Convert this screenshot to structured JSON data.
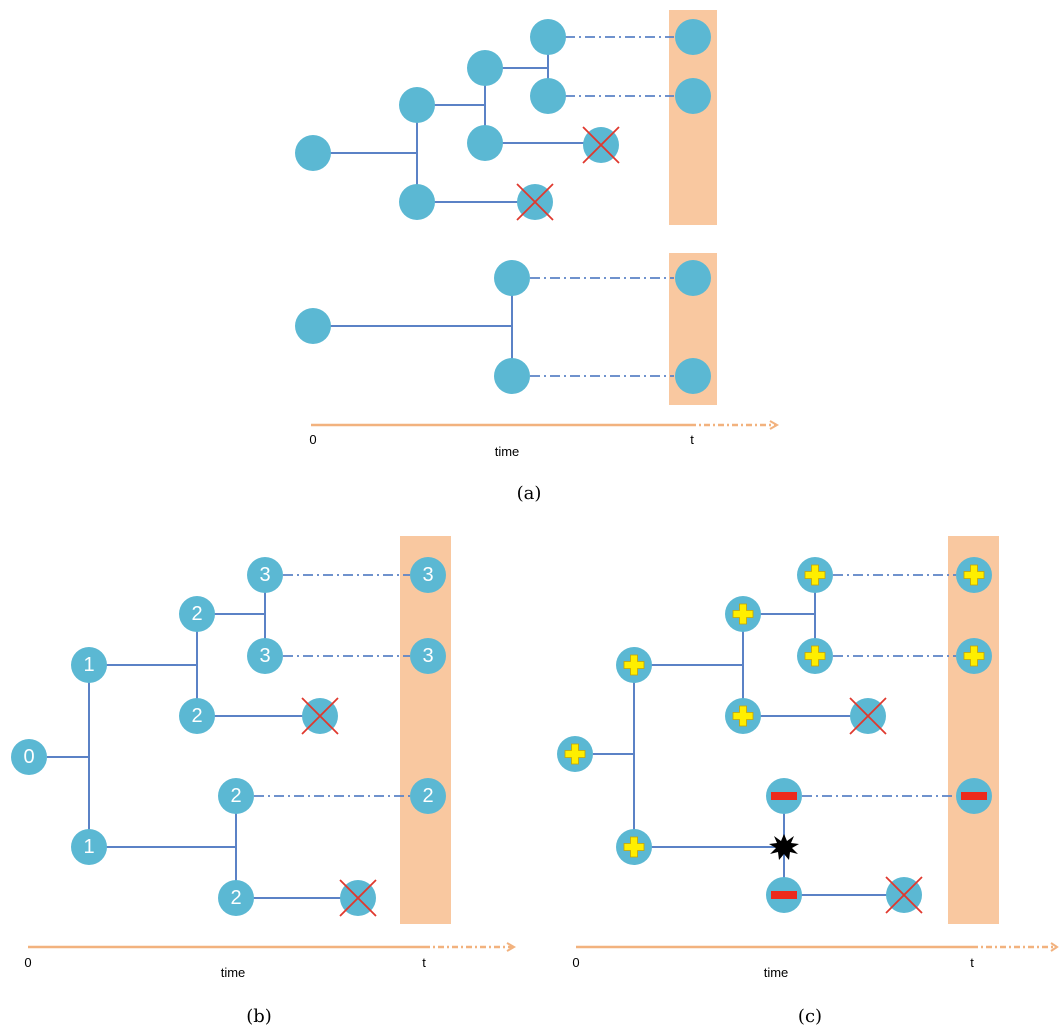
{
  "colors": {
    "node": "#5bb8d3",
    "edge": "#5b82c6",
    "band": "#f9c8a0",
    "axis": "#f2b27e",
    "cross": "#e0382e",
    "plus_marker": "#ffee00",
    "minus_marker": "#ee2a1c"
  },
  "panels": {
    "a": {
      "caption": "(a)",
      "axis": {
        "start_label": "0",
        "middle_label": "time",
        "end_label": "t"
      }
    },
    "b": {
      "caption": "(b)",
      "node_labels": [
        "0",
        "1",
        "1",
        "2",
        "2",
        "2",
        "2",
        "3",
        "3",
        "3",
        "3",
        "2"
      ],
      "axis": {
        "start_label": "0",
        "middle_label": "time",
        "end_label": "t"
      }
    },
    "c": {
      "caption": "(c)",
      "markers": [
        "plus",
        "plus",
        "plus",
        "plus",
        "plus",
        "plus",
        "plus",
        "plus",
        "minus",
        "minus",
        "minus"
      ],
      "axis": {
        "start_label": "0",
        "middle_label": "time",
        "end_label": "t"
      }
    }
  }
}
